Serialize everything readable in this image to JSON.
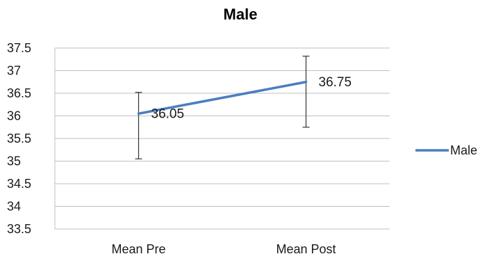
{
  "chart_data": {
    "type": "line",
    "title": "Male",
    "xlabel": "",
    "ylabel": "",
    "categories": [
      "Mean Pre",
      "Mean Post"
    ],
    "series": [
      {
        "name": "Male",
        "values": [
          36.05,
          36.75
        ],
        "error_high": [
          36.52,
          37.32
        ],
        "error_low": [
          35.05,
          35.75
        ],
        "data_labels": [
          "36.05",
          "36.75"
        ],
        "color": "#4a7ebf"
      }
    ],
    "ylim": [
      33.5,
      37.5
    ],
    "yticks": [
      "33.5",
      "34",
      "34.5",
      "35",
      "35.5",
      "36",
      "36.5",
      "37",
      "37.5"
    ],
    "grid": true,
    "legend_position": "right",
    "colors": {
      "series": "#4a7ebf",
      "grid": "#bfbfbf",
      "error_bar": "#333333"
    }
  }
}
